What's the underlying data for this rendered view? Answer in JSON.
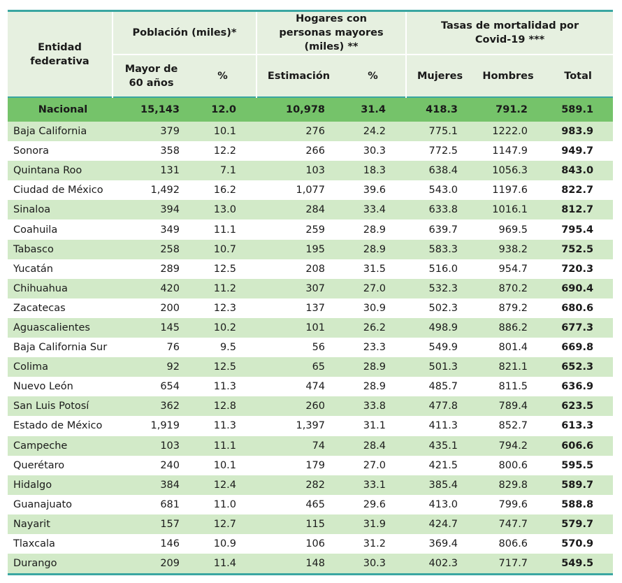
{
  "header": {
    "entity": "Entidad federativa",
    "poblacion": "Población (miles)*",
    "hogares": "Hogares con personas mayores (miles) **",
    "tasas": "Tasas de mortalidad por Covid-19 ***",
    "sub_mayor60": "Mayor de 60 años",
    "sub_pct1": "%",
    "sub_estimacion": "Estimación",
    "sub_pct2": "%",
    "sub_mujeres": "Mujeres",
    "sub_hombres": "Hombres",
    "sub_total": "Total"
  },
  "national": [
    "Nacional",
    "15,143",
    "12.0",
    "10,978",
    "31.4",
    "418.3",
    "791.2",
    "589.1"
  ],
  "rows": [
    [
      "Baja California",
      "379",
      "10.1",
      "276",
      "24.2",
      "775.1",
      "1222.0",
      "983.9"
    ],
    [
      "Sonora",
      "358",
      "12.2",
      "266",
      "30.3",
      "772.5",
      "1147.9",
      "949.7"
    ],
    [
      "Quintana Roo",
      "131",
      "7.1",
      "103",
      "18.3",
      "638.4",
      "1056.3",
      "843.0"
    ],
    [
      "Ciudad de México",
      "1,492",
      "16.2",
      "1,077",
      "39.6",
      "543.0",
      "1197.6",
      "822.7"
    ],
    [
      "Sinaloa",
      "394",
      "13.0",
      "284",
      "33.4",
      "633.8",
      "1016.1",
      "812.7"
    ],
    [
      "Coahuila",
      "349",
      "11.1",
      "259",
      "28.9",
      "639.7",
      "969.5",
      "795.4"
    ],
    [
      "Tabasco",
      "258",
      "10.7",
      "195",
      "28.9",
      "583.3",
      "938.2",
      "752.5"
    ],
    [
      "Yucatán",
      "289",
      "12.5",
      "208",
      "31.5",
      "516.0",
      "954.7",
      "720.3"
    ],
    [
      "Chihuahua",
      "420",
      "11.2",
      "307",
      "27.0",
      "532.3",
      "870.2",
      "690.4"
    ],
    [
      "Zacatecas",
      "200",
      "12.3",
      "137",
      "30.9",
      "502.3",
      "879.2",
      "680.6"
    ],
    [
      "Aguascalientes",
      "145",
      "10.2",
      "101",
      "26.2",
      "498.9",
      "886.2",
      "677.3"
    ],
    [
      "Baja California Sur",
      "76",
      "9.5",
      "56",
      "23.3",
      "549.9",
      "801.4",
      "669.8"
    ],
    [
      "Colima",
      "92",
      "12.5",
      "65",
      "28.9",
      "501.3",
      "821.1",
      "652.3"
    ],
    [
      "Nuevo León",
      "654",
      "11.3",
      "474",
      "28.9",
      "485.7",
      "811.5",
      "636.9"
    ],
    [
      "San Luis Potosí",
      "362",
      "12.8",
      "260",
      "33.8",
      "477.8",
      "789.4",
      "623.5"
    ],
    [
      "Estado de México",
      "1,919",
      "11.3",
      "1,397",
      "31.1",
      "411.3",
      "852.7",
      "613.3"
    ],
    [
      "Campeche",
      "103",
      "11.1",
      "74",
      "28.4",
      "435.1",
      "794.2",
      "606.6"
    ],
    [
      "Querétaro",
      "240",
      "10.1",
      "179",
      "27.0",
      "421.5",
      "800.6",
      "595.5"
    ],
    [
      "Hidalgo",
      "384",
      "12.4",
      "282",
      "33.1",
      "385.4",
      "829.8",
      "589.7"
    ],
    [
      "Guanajuato",
      "681",
      "11.0",
      "465",
      "29.6",
      "413.0",
      "799.6",
      "588.8"
    ],
    [
      "Nayarit",
      "157",
      "12.7",
      "115",
      "31.9",
      "424.7",
      "747.7",
      "579.7"
    ],
    [
      "Tlaxcala",
      "146",
      "10.9",
      "106",
      "31.2",
      "369.4",
      "806.6",
      "570.9"
    ],
    [
      "Durango",
      "209",
      "11.4",
      "148",
      "30.3",
      "402.3",
      "717.7",
      "549.5"
    ]
  ],
  "colors": {
    "accent_line": "#3aa6a1",
    "header_bg": "#e6f0e0",
    "national_bg": "#75c36a",
    "stripe_bg": "#d2eac8"
  }
}
